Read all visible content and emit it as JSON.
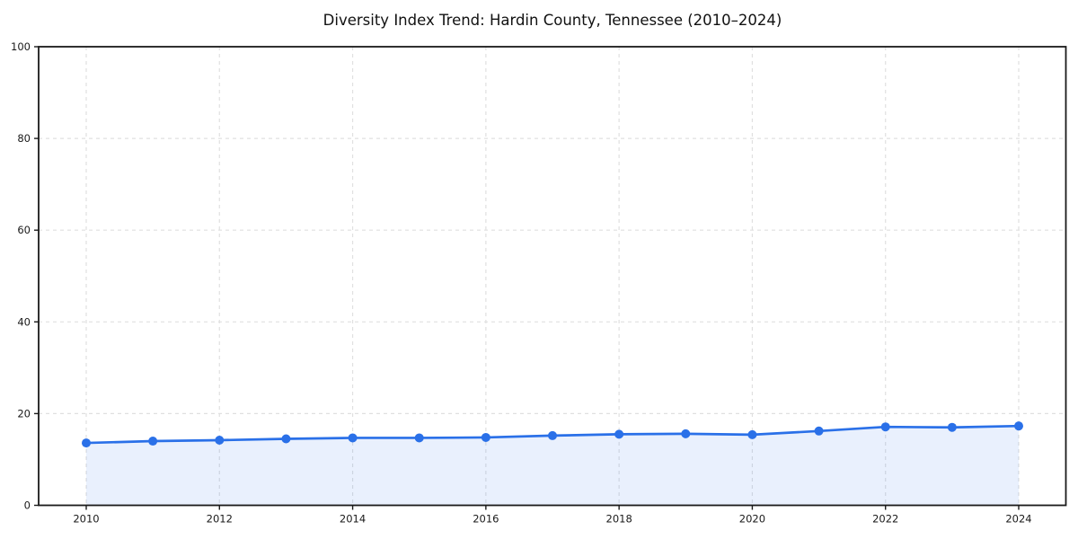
{
  "title": "Diversity Index Trend: Hardin County, Tennessee (2010–2024)",
  "colors": {
    "line": "#2a70e8",
    "marker": "#2a70e8",
    "area_fill": "rgba(42,112,232,0.10)",
    "grid": "#e0e0e0",
    "axis": "#1a1a1a",
    "text": "#1a1a1a",
    "background": "#ffffff"
  },
  "chart_data": {
    "type": "area",
    "title": "Diversity Index Trend: Hardin County, Tennessee (2010–2024)",
    "xlabel": "",
    "ylabel": "",
    "x": [
      2010,
      2011,
      2012,
      2013,
      2014,
      2015,
      2016,
      2017,
      2018,
      2019,
      2020,
      2021,
      2022,
      2023,
      2024
    ],
    "series": [
      {
        "name": "Diversity Index",
        "values": [
          13.6,
          14.0,
          14.2,
          14.5,
          14.7,
          14.7,
          14.8,
          15.2,
          15.5,
          15.6,
          15.4,
          16.2,
          17.1,
          17.0,
          17.3
        ]
      }
    ],
    "ylim": [
      0,
      100
    ],
    "yticks": [
      0,
      20,
      40,
      60,
      80,
      100
    ],
    "xticks": [
      2010,
      2012,
      2014,
      2016,
      2018,
      2020,
      2022,
      2024
    ],
    "grid": true,
    "grid_style": "dashed",
    "legend": false,
    "markers": true
  }
}
